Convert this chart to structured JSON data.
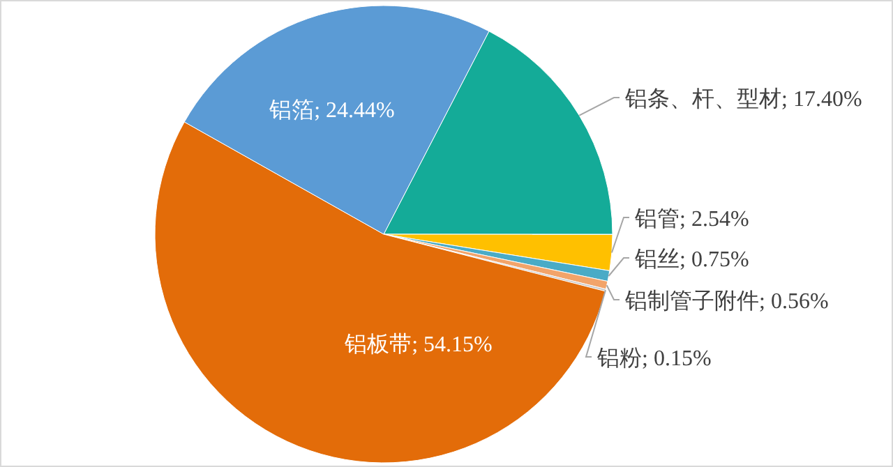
{
  "chart_data": {
    "type": "pie",
    "categories": [
      "铝条、杆、型材",
      "铝管",
      "铝丝",
      "铝制管子附件",
      "铝粉",
      "铝板带",
      "铝箔"
    ],
    "values": [
      17.4,
      2.54,
      0.75,
      0.56,
      0.15,
      54.15,
      24.44
    ],
    "value_labels": [
      "17.40%",
      "2.54%",
      "0.75%",
      "0.56%",
      "0.15%",
      "54.15%",
      "24.44%"
    ],
    "colors": [
      "#14ab98",
      "#ffc000",
      "#4aabc6",
      "#f2a46a",
      "#c8c8c8",
      "#e36c09",
      "#5b9bd5"
    ]
  }
}
